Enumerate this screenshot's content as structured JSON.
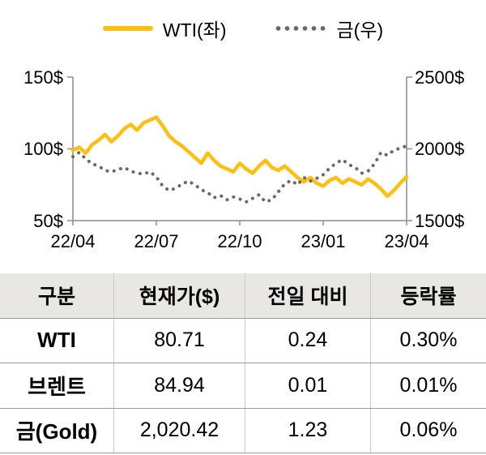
{
  "chart_data": {
    "type": "line",
    "title": "",
    "x_labels": [
      "22/04",
      "22/07",
      "22/10",
      "23/01",
      "23/04"
    ],
    "left_axis": {
      "min": 50,
      "max": 150,
      "ticks": [
        "150$",
        "100$",
        "50$"
      ]
    },
    "right_axis": {
      "min": 1500,
      "max": 2500,
      "ticks": [
        "2500$",
        "2000$",
        "1500$"
      ]
    },
    "legend_position": "top",
    "grid": false,
    "series": [
      {
        "name": "WTI(좌)",
        "axis": "left",
        "style": "solid",
        "color": "#FCBF12",
        "values": [
          99,
          101,
          97,
          103,
          106,
          110,
          105,
          109,
          114,
          117,
          113,
          118,
          120,
          122,
          116,
          109,
          105,
          102,
          98,
          94,
          90,
          97,
          92,
          88,
          86,
          84,
          90,
          86,
          83,
          88,
          92,
          87,
          85,
          88,
          84,
          80,
          77,
          80,
          76,
          74,
          78,
          80,
          76,
          79,
          77,
          75,
          79,
          76,
          72,
          67,
          71,
          76,
          80.71
        ]
      },
      {
        "name": "금(우)",
        "axis": "right",
        "style": "dotted",
        "color": "#6D675C",
        "values": [
          1945,
          1975,
          1930,
          1895,
          1880,
          1850,
          1840,
          1855,
          1870,
          1845,
          1830,
          1825,
          1840,
          1805,
          1740,
          1710,
          1725,
          1755,
          1775,
          1750,
          1715,
          1695,
          1660,
          1675,
          1645,
          1665,
          1650,
          1630,
          1655,
          1680,
          1630,
          1645,
          1700,
          1755,
          1780,
          1750,
          1800,
          1775,
          1795,
          1820,
          1865,
          1900,
          1925,
          1890,
          1870,
          1830,
          1845,
          1895,
          1975,
          1955,
          1990,
          2005,
          2020.42
        ]
      }
    ]
  },
  "table": {
    "headers": [
      "구분",
      "현재가($)",
      "전일 대비",
      "등락률"
    ],
    "rows": [
      {
        "name": "WTI",
        "price": "80.71",
        "change": "0.24",
        "rate": "0.30%"
      },
      {
        "name": "브렌트",
        "price": "84.94",
        "change": "0.01",
        "rate": "0.01%"
      },
      {
        "name": "금(Gold)",
        "price": "2,020.42",
        "change": "1.23",
        "rate": "0.06%"
      }
    ]
  }
}
